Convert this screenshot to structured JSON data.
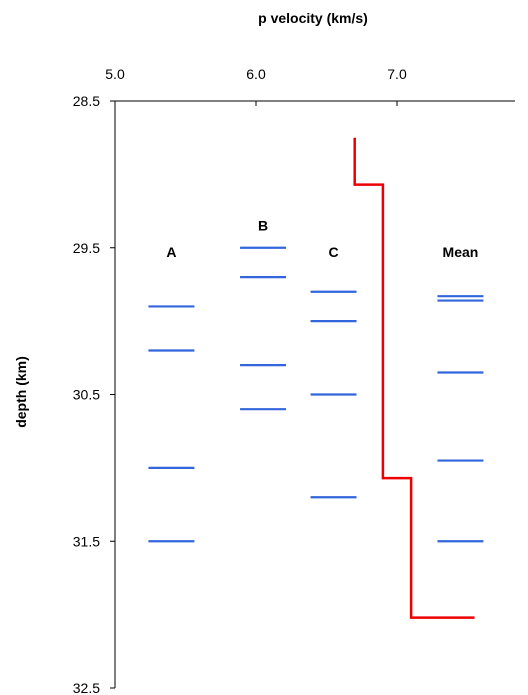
{
  "chart_data": {
    "type": "line",
    "xlabel": "p velocity (km/s)",
    "ylabel": "depth (km)",
    "xlim": [
      5.0,
      7.0
    ],
    "ylim": [
      28.5,
      32.5
    ],
    "y_inverted": true,
    "x_axis_position": "top",
    "x_ticks": [
      "5.0",
      "6.0",
      "7.0"
    ],
    "y_ticks": [
      "28.5",
      "29.5",
      "30.5",
      "31.5",
      "32.5"
    ],
    "grid": false,
    "legend": "none",
    "colors": {
      "markers": "#3366dd",
      "profile": "#ee0000"
    },
    "groups": [
      {
        "label": "A",
        "label_depth": 29.53,
        "x": 5.4,
        "depths": [
          29.9,
          30.2,
          31.0,
          31.5
        ]
      },
      {
        "label": "B",
        "label_depth": 29.35,
        "x": 6.05,
        "depths": [
          29.5,
          29.7,
          30.3,
          30.6
        ]
      },
      {
        "label": "C",
        "label_depth": 29.53,
        "x": 6.55,
        "depths": [
          29.8,
          30.0,
          30.5,
          31.2
        ]
      },
      {
        "label": "Mean",
        "label_depth": 29.53,
        "x": 7.45,
        "depths": [
          29.83,
          29.86,
          30.35,
          30.95,
          31.5
        ]
      }
    ],
    "profile": {
      "x": [
        6.7,
        6.7,
        6.9,
        6.9,
        7.1,
        7.1,
        7.55
      ],
      "depth": [
        28.75,
        29.07,
        29.07,
        31.07,
        31.07,
        32.02,
        32.02
      ]
    }
  }
}
